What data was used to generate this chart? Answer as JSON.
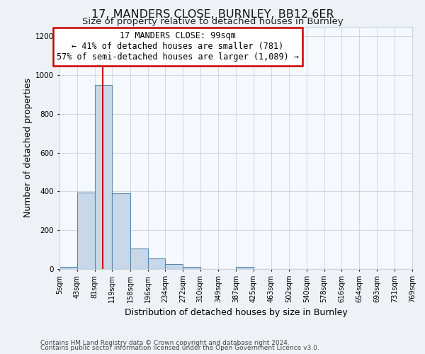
{
  "title_line1": "17, MANDERS CLOSE, BURNLEY, BB12 6ER",
  "title_line2": "Size of property relative to detached houses in Burnley",
  "xlabel": "Distribution of detached houses by size in Burnley",
  "ylabel": "Number of detached properties",
  "bin_edges": [
    5,
    43,
    81,
    119,
    158,
    196,
    234,
    272,
    310,
    349,
    387,
    425,
    463,
    502,
    540,
    578,
    616,
    654,
    693,
    731,
    769
  ],
  "bar_heights": [
    10,
    395,
    950,
    390,
    105,
    55,
    25,
    10,
    0,
    0,
    10,
    0,
    0,
    0,
    0,
    0,
    0,
    0,
    0,
    0
  ],
  "bar_color": "#c8d8e8",
  "bar_edge_color": "#5a8ab0",
  "bar_edge_width": 0.8,
  "property_size": 99,
  "red_line_color": "#cc0000",
  "ylim": [
    0,
    1250
  ],
  "yticks": [
    0,
    200,
    400,
    600,
    800,
    1000,
    1200
  ],
  "annotation_line1": "17 MANDERS CLOSE: 99sqm",
  "annotation_line2": "← 41% of detached houses are smaller (781)",
  "annotation_line3": "57% of semi-detached houses are larger (1,089) →",
  "annotation_box_color": "#ffffff",
  "annotation_box_edge_color": "#cc0000",
  "bg_color": "#eef2f7",
  "plot_bg_color": "#f5f8fc",
  "grid_color": "#c8d4e0",
  "footer_line1": "Contains HM Land Registry data © Crown copyright and database right 2024.",
  "footer_line2": "Contains public sector information licensed under the Open Government Licence v3.0.",
  "title_fontsize": 11.5,
  "subtitle_fontsize": 9.5,
  "tick_label_fontsize": 7,
  "axis_label_fontsize": 9,
  "annotation_fontsize": 8.5,
  "footer_fontsize": 6.5
}
